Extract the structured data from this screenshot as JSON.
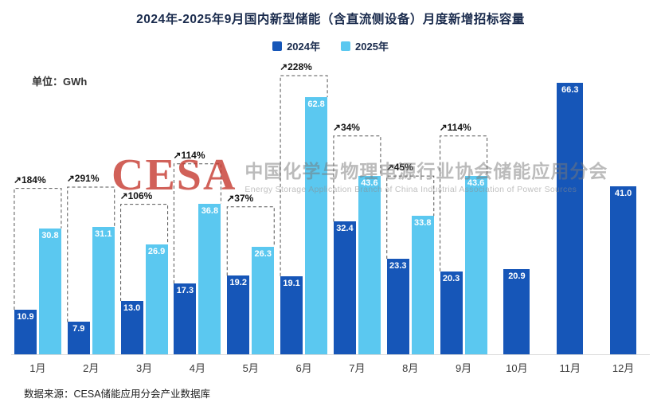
{
  "chart_data": {
    "type": "bar",
    "title": "2024年-2025年9月国内新型储能（含直流侧设备）月度新增招标容量",
    "unit_label": "单位：GWh",
    "categories": [
      "1月",
      "2月",
      "3月",
      "4月",
      "5月",
      "6月",
      "7月",
      "8月",
      "9月",
      "10月",
      "11月",
      "12月"
    ],
    "series": [
      {
        "name": "2024年",
        "color": "#1656b8",
        "values": [
          10.9,
          7.9,
          13.0,
          17.3,
          19.2,
          19.1,
          32.4,
          23.3,
          20.3,
          20.9,
          66.3,
          41.0
        ]
      },
      {
        "name": "2025年",
        "color": "#5bc8f0",
        "values": [
          30.8,
          31.1,
          26.9,
          36.8,
          26.3,
          62.8,
          43.6,
          33.8,
          43.6,
          null,
          null,
          null
        ]
      }
    ],
    "growth_labels": [
      "↗184%",
      "↗291%",
      "↗106%",
      "↗114%",
      "↗37%",
      "↗228%",
      "↗34%",
      "↗45%",
      "↗114%",
      null,
      null,
      null
    ],
    "ylim": [
      0,
      70
    ],
    "grid": false,
    "legend_position": "top"
  },
  "watermark": {
    "cesa": "CESA",
    "cn": "中国化学与物理电源行业协会储能应用分会",
    "en": "Energy Storage Application Branch of China Industrial Association of Power Sources"
  },
  "footer": {
    "source": "数据来源：CESA储能应用分会产业数据库"
  }
}
